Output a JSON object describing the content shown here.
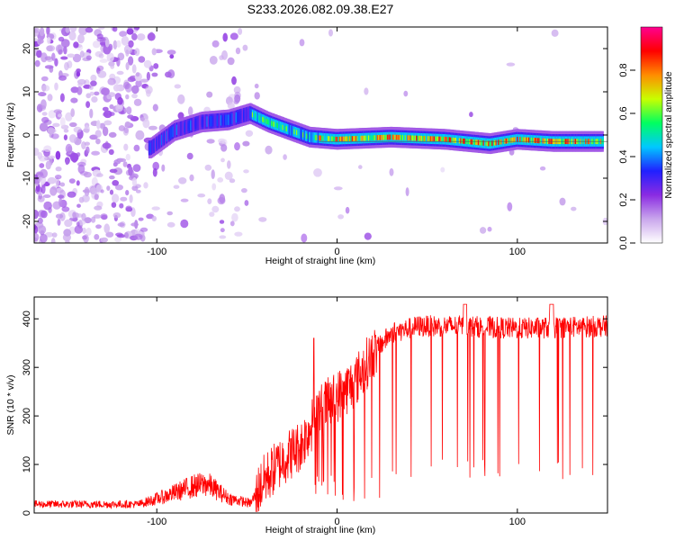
{
  "title": "S233.2026.082.09.38.E27",
  "chart_data": [
    {
      "type": "heatmap",
      "name": "spectrogram",
      "xlabel": "Height of straight line (km)",
      "ylabel": "Frequency (Hz)",
      "xlim": [
        -168,
        150
      ],
      "ylim": [
        -25,
        25
      ],
      "xticks": [
        {
          "value": -100,
          "label": "-100"
        },
        {
          "value": 0,
          "label": "0"
        },
        {
          "value": 100,
          "label": "100"
        }
      ],
      "yticks": [
        {
          "value": 20,
          "label": "20"
        },
        {
          "value": 10,
          "label": "10"
        },
        {
          "value": 0,
          "label": "0"
        },
        {
          "value": -10,
          "label": "-10"
        },
        {
          "value": -20,
          "label": "-20"
        }
      ],
      "ridge": {
        "description_points": [
          {
            "x": -103,
            "y": -3
          },
          {
            "x": -90,
            "y": 1
          },
          {
            "x": -75,
            "y": 3
          },
          {
            "x": -60,
            "y": 3.5
          },
          {
            "x": -48,
            "y": 5
          },
          {
            "x": -38,
            "y": 3
          },
          {
            "x": -25,
            "y": 1
          },
          {
            "x": -15,
            "y": -0.5
          },
          {
            "x": 0,
            "y": -1
          },
          {
            "x": 30,
            "y": -0.5
          },
          {
            "x": 60,
            "y": -1
          },
          {
            "x": 85,
            "y": -2
          },
          {
            "x": 100,
            "y": -1
          },
          {
            "x": 120,
            "y": -1.5
          },
          {
            "x": 148,
            "y": -1.5
          }
        ]
      },
      "colorbar": {
        "label": "Normalized spectral amplitude",
        "range": [
          0,
          1
        ],
        "ticks": [
          {
            "value": 0.0,
            "label": "0.0"
          },
          {
            "value": 0.2,
            "label": "0.2"
          },
          {
            "value": 0.4,
            "label": "0.4"
          },
          {
            "value": 0.6,
            "label": "0.6"
          },
          {
            "value": 0.8,
            "label": "0.8"
          }
        ],
        "colors": [
          "#ffffff",
          "#c9a6ec",
          "#8a2be2",
          "#2020ff",
          "#00c8ff",
          "#00ff60",
          "#c8ff00",
          "#ff8c00",
          "#ff0000",
          "#ff0090"
        ]
      }
    },
    {
      "type": "line",
      "name": "snr",
      "xlabel": "Height of straight line (km)",
      "ylabel": "SNR (10 * v/v)",
      "xlim": [
        -168,
        150
      ],
      "ylim": [
        0,
        445
      ],
      "color": "#ff0000",
      "xticks": [
        {
          "value": -100,
          "label": "-100"
        },
        {
          "value": 0,
          "label": "0"
        },
        {
          "value": 100,
          "label": "100"
        }
      ],
      "yticks": [
        {
          "value": 0,
          "label": "0"
        },
        {
          "value": 100,
          "label": "100"
        },
        {
          "value": 200,
          "label": "200"
        },
        {
          "value": 300,
          "label": "300"
        },
        {
          "value": 400,
          "label": "400"
        }
      ],
      "trend": [
        {
          "x": -168,
          "y": 18
        },
        {
          "x": -110,
          "y": 18
        },
        {
          "x": -95,
          "y": 35
        },
        {
          "x": -80,
          "y": 55
        },
        {
          "x": -72,
          "y": 60
        },
        {
          "x": -60,
          "y": 30
        },
        {
          "x": -48,
          "y": 20
        },
        {
          "x": -40,
          "y": 70
        },
        {
          "x": -30,
          "y": 110
        },
        {
          "x": -20,
          "y": 140
        },
        {
          "x": -10,
          "y": 210
        },
        {
          "x": 0,
          "y": 240
        },
        {
          "x": 10,
          "y": 270
        },
        {
          "x": 20,
          "y": 330
        },
        {
          "x": 30,
          "y": 370
        },
        {
          "x": 45,
          "y": 385
        },
        {
          "x": 70,
          "y": 385
        },
        {
          "x": 100,
          "y": 380
        },
        {
          "x": 130,
          "y": 383
        },
        {
          "x": 150,
          "y": 385
        }
      ]
    }
  ]
}
